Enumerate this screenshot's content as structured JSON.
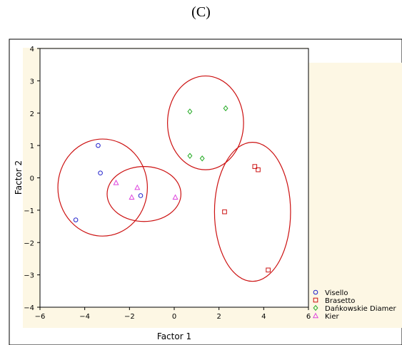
{
  "figure": {
    "panel_label": "(C)"
  },
  "chart_data": {
    "type": "scatter",
    "xlabel": "Factor 1",
    "ylabel": "Factor 2",
    "xlim": [
      -6,
      6
    ],
    "ylim": [
      -4,
      4
    ],
    "x_ticks": [
      -6,
      -4,
      -2,
      0,
      2,
      4,
      6
    ],
    "y_ticks": [
      -4,
      -3,
      -2,
      -1,
      0,
      1,
      2,
      3,
      4
    ],
    "grid": false,
    "legend_position": "bottom-right",
    "series": [
      {
        "name": "Visello",
        "color": "#2222cc",
        "marker": "circle",
        "points": [
          [
            -3.4,
            1.0
          ],
          [
            -3.3,
            0.15
          ],
          [
            -1.5,
            -0.55
          ],
          [
            -4.4,
            -1.3
          ]
        ]
      },
      {
        "name": "Brasetto",
        "color": "#cc1111",
        "marker": "square",
        "points": [
          [
            3.6,
            0.35
          ],
          [
            3.75,
            0.25
          ],
          [
            2.25,
            -1.05
          ],
          [
            4.2,
            -2.85
          ]
        ]
      },
      {
        "name": "Dańkowskie Diamer",
        "color": "#22aa22",
        "marker": "diamond",
        "points": [
          [
            0.7,
            2.05
          ],
          [
            2.3,
            2.15
          ],
          [
            0.7,
            0.68
          ],
          [
            1.25,
            0.6
          ]
        ]
      },
      {
        "name": "Kier",
        "color": "#dd44dd",
        "marker": "triangle",
        "points": [
          [
            -2.6,
            -0.15
          ],
          [
            -1.65,
            -0.3
          ],
          [
            -1.9,
            -0.6
          ],
          [
            0.05,
            -0.6
          ]
        ]
      }
    ],
    "ellipses": [
      {
        "center": [
          -3.2,
          -0.3
        ],
        "rx": 2.0,
        "ry": 1.5,
        "color": "#cc1111"
      },
      {
        "center": [
          -1.35,
          -0.5
        ],
        "rx": 1.65,
        "ry": 0.85,
        "color": "#cc1111"
      },
      {
        "center": [
          1.4,
          1.7
        ],
        "rx": 1.7,
        "ry": 1.45,
        "color": "#cc1111"
      },
      {
        "center": [
          3.5,
          -1.05
        ],
        "rx": 1.7,
        "ry": 2.15,
        "color": "#cc1111"
      }
    ]
  }
}
